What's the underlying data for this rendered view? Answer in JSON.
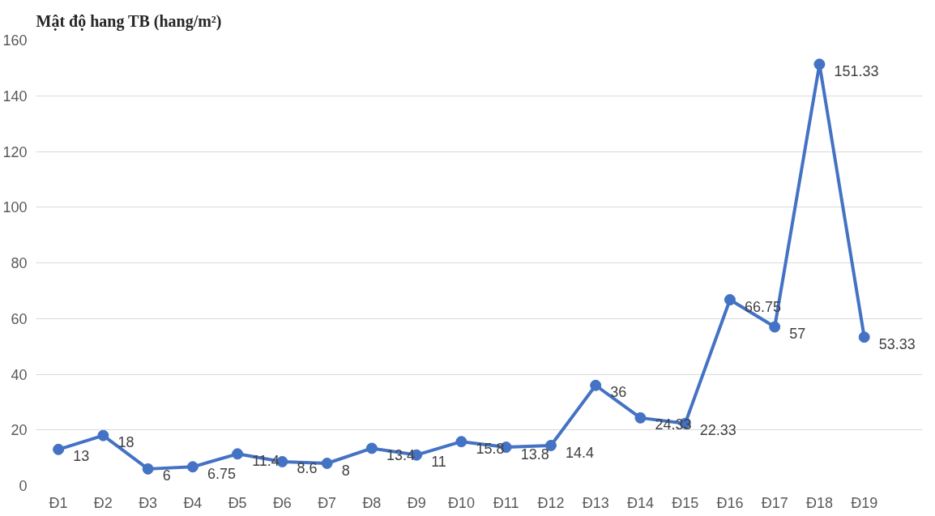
{
  "chart_data": {
    "type": "line",
    "title": "Mật độ hang TB (hang/m²)",
    "categories": [
      "Đ1",
      "Đ2",
      "Đ3",
      "Đ4",
      "Đ5",
      "Đ6",
      "Đ7",
      "Đ8",
      "Đ9",
      "Đ10",
      "Đ11",
      "Đ12",
      "Đ13",
      "Đ14",
      "Đ15",
      "Đ16",
      "Đ17",
      "Đ18",
      "Đ19"
    ],
    "series": [
      {
        "color": "#4472c4",
        "values": [
          13,
          18,
          6,
          6.75,
          11.4,
          8.6,
          8,
          13.4,
          11,
          15.8,
          13.8,
          14.4,
          36,
          24.33,
          22.33,
          66.75,
          57,
          151.33,
          53.33
        ]
      }
    ],
    "ylim": [
      0,
      160
    ],
    "yticks": [
      0,
      20,
      40,
      60,
      80,
      100,
      120,
      140,
      160
    ],
    "grid": "y",
    "marker": "circle",
    "line_style": "solid",
    "data_labels": true
  }
}
